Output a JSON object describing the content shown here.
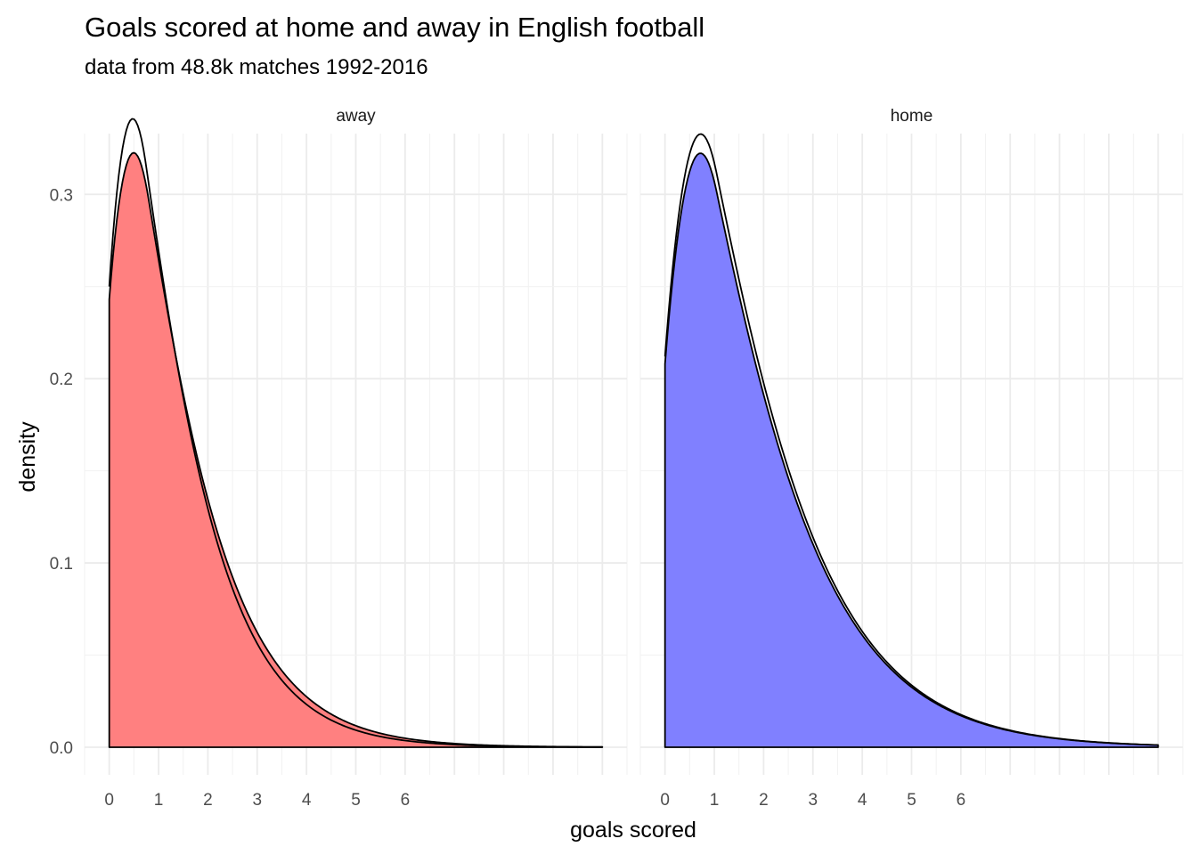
{
  "chart_data": {
    "type": "area",
    "title": "Goals scored at home and away in English football",
    "subtitle": "data from 48.8k matches 1992-2016",
    "xlabel": "goals scored",
    "ylabel": "density",
    "x_ticks": [
      "0",
      "1",
      "2",
      "3",
      "4",
      "5",
      "6"
    ],
    "y_ticks": [
      "0.0",
      "0.1",
      "0.2",
      "0.3"
    ],
    "xlim": [
      -0.5,
      10.5
    ],
    "ylim": [
      -0.015,
      0.333
    ],
    "x_range": [
      0,
      10
    ],
    "grid": true,
    "legend": "none",
    "facets": [
      {
        "label": "away",
        "fill": "#ff8080",
        "series": [
          {
            "name": "filled density",
            "mode": 0.8,
            "peak": 0.297,
            "at_zero": 0.243
          },
          {
            "name": "outline density",
            "mode": 0.75,
            "peak": 0.315,
            "at_zero": 0.25
          }
        ]
      },
      {
        "label": "home",
        "fill": "#8080ff",
        "series": [
          {
            "name": "filled density",
            "mode": 1.05,
            "peak": 0.301,
            "at_zero": 0.208
          },
          {
            "name": "outline density",
            "mode": 1.05,
            "peak": 0.311,
            "at_zero": 0.212
          }
        ]
      }
    ]
  }
}
